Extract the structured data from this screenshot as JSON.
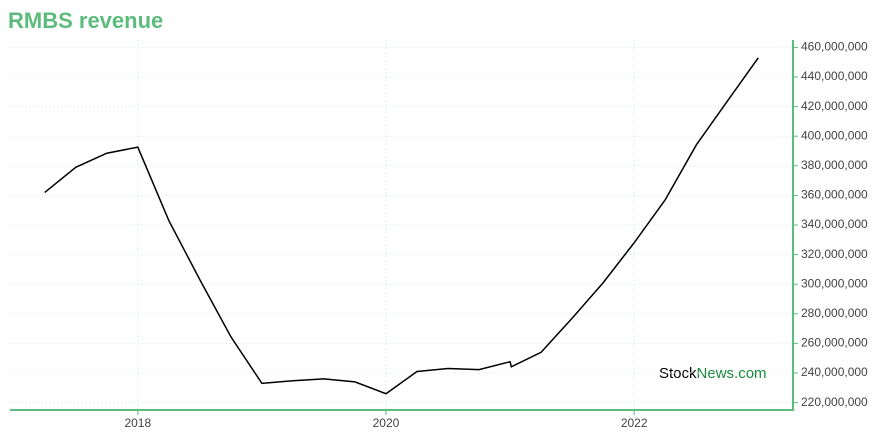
{
  "chart_data": {
    "type": "line",
    "title": "RMBS revenue",
    "watermark": {
      "first": "Stock",
      "second": "News.com"
    },
    "x": [
      2017.25,
      2017.5,
      2017.75,
      2018.0,
      2018.25,
      2018.5,
      2018.75,
      2019.0,
      2019.25,
      2019.5,
      2019.75,
      2020.0,
      2020.25,
      2020.5,
      2020.75,
      2021.0,
      2021.01,
      2021.25,
      2021.5,
      2021.75,
      2022.0,
      2022.25,
      2022.5,
      2022.75,
      2023.0
    ],
    "series": [
      {
        "name": "RMBS revenue",
        "color": "#000000",
        "values": [
          362000000,
          379000000,
          388500000,
          392600000,
          343000000,
          303000000,
          264500000,
          233000000,
          234800000,
          236000000,
          234000000,
          226000000,
          241000000,
          243000000,
          242300000,
          247600000,
          244200000,
          254000000,
          277000000,
          301000000,
          328000000,
          357000000,
          394000000,
          423600000,
          453000000
        ]
      }
    ],
    "xlim": [
      2016.97,
      2023.28
    ],
    "xticks": [
      2018,
      2020,
      2022
    ],
    "ylim": [
      215000000,
      465000000
    ],
    "yticks": [
      {
        "value": 220000000,
        "label": "220,000,000"
      },
      {
        "value": 240000000,
        "label": "240,000,000"
      },
      {
        "value": 260000000,
        "label": "260,000,000"
      },
      {
        "value": 280000000,
        "label": "280,000,000"
      },
      {
        "value": 300000000,
        "label": "300,000,000"
      },
      {
        "value": 320000000,
        "label": "320,000,000"
      },
      {
        "value": 340000000,
        "label": "340,000,000"
      },
      {
        "value": 360000000,
        "label": "360,000,000"
      },
      {
        "value": 380000000,
        "label": "380,000,000"
      },
      {
        "value": 400000000,
        "label": "400,000,000"
      },
      {
        "value": 420000000,
        "label": "420,000,000"
      },
      {
        "value": 440000000,
        "label": "440,000,000"
      },
      {
        "value": 460000000,
        "label": "460,000,000"
      }
    ],
    "grid": true,
    "axis_color": "#5dbb7d"
  }
}
